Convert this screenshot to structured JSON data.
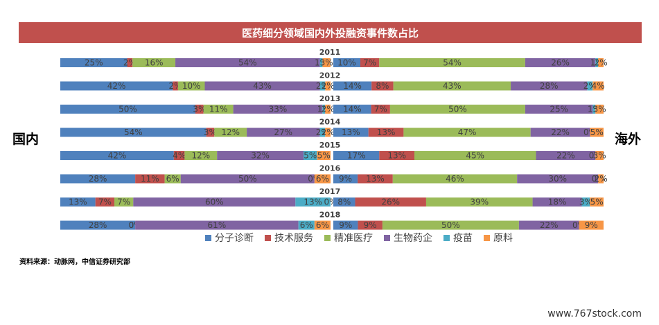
{
  "title": "医药细分领域国内外投融资事件数占比",
  "left_label": "国内",
  "right_label": "海外",
  "source": "资料来源：动脉网，中信证券研究部",
  "watermark": "www.767stock.com",
  "chart_data": {
    "type": "bar",
    "orientation": "horizontal-stacked-100",
    "categories": [
      "2011",
      "2012",
      "2013",
      "2014",
      "2015",
      "2016",
      "2017",
      "2018"
    ],
    "legend": [
      {
        "name": "分子诊断",
        "color": "#4f81bd"
      },
      {
        "name": "技术服务",
        "color": "#c0504d"
      },
      {
        "name": "精准医疗",
        "color": "#9bbb59"
      },
      {
        "name": "生物药企",
        "color": "#8064a2"
      },
      {
        "name": "疫苗",
        "color": "#4bacc6"
      },
      {
        "name": "原料",
        "color": "#f79646"
      }
    ],
    "domestic": {
      "name": "国内",
      "series": [
        {
          "name": "分子诊断",
          "values": [
            25,
            42,
            50,
            54,
            42,
            28,
            13,
            28
          ]
        },
        {
          "name": "技术服务",
          "values": [
            2,
            2,
            3,
            3,
            4,
            11,
            7,
            0
          ]
        },
        {
          "name": "精准医疗",
          "values": [
            16,
            10,
            11,
            12,
            12,
            6,
            7,
            0
          ]
        },
        {
          "name": "生物药企",
          "values": [
            54,
            43,
            33,
            27,
            32,
            50,
            60,
            61
          ]
        },
        {
          "name": "疫苗",
          "values": [
            1,
            2,
            1,
            2,
            5,
            0,
            13,
            6
          ]
        },
        {
          "name": "原料",
          "values": [
            3,
            2,
            2,
            2,
            5,
            6,
            0,
            6
          ]
        }
      ]
    },
    "overseas": {
      "name": "海外",
      "series": [
        {
          "name": "分子诊断",
          "values": [
            10,
            14,
            14,
            13,
            17,
            9,
            8,
            9
          ]
        },
        {
          "name": "技术服务",
          "values": [
            7,
            8,
            7,
            13,
            13,
            13,
            26,
            9
          ]
        },
        {
          "name": "精准医疗",
          "values": [
            54,
            43,
            50,
            47,
            45,
            46,
            39,
            50
          ]
        },
        {
          "name": "生物药企",
          "values": [
            26,
            28,
            25,
            22,
            22,
            30,
            18,
            22
          ]
        },
        {
          "name": "疫苗",
          "values": [
            1,
            2,
            1,
            0,
            0,
            0,
            3,
            0
          ]
        },
        {
          "name": "原料",
          "values": [
            2,
            4,
            3,
            5,
            3,
            2,
            5,
            9
          ]
        }
      ]
    }
  }
}
